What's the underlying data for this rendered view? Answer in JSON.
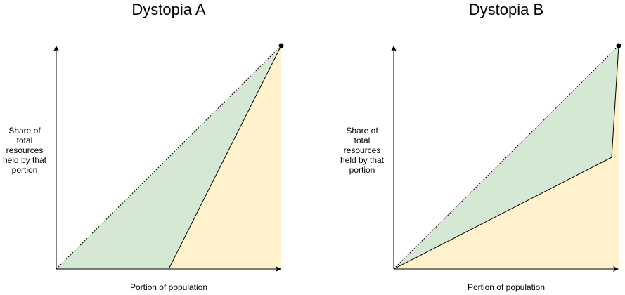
{
  "panels": [
    {
      "title": "Dystopia A",
      "y_label": [
        "Share of",
        "total",
        "resources",
        "held by that",
        "portion"
      ],
      "x_label": "Portion of population"
    },
    {
      "title": "Dystopia B",
      "y_label": [
        "Share of",
        "total",
        "resources",
        "held by that",
        "portion"
      ],
      "x_label": "Portion of population"
    }
  ]
}
